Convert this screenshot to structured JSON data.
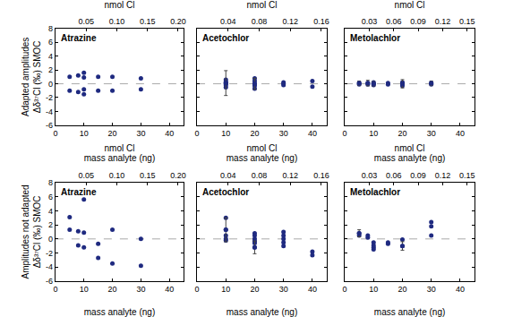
{
  "chart_data": [
    {
      "type": "scatter",
      "title": "Atrazine",
      "xlabel": "mass analyte (ng)",
      "x2label": "nmol Cl",
      "ylabel": [
        "Adapted amplitudes",
        "Δδ³⁷Cl (‰) SMOC"
      ],
      "xlim": [
        0,
        45
      ],
      "xticks": [
        0,
        10,
        20,
        30,
        40
      ],
      "x2lim": [
        0,
        0.209
      ],
      "x2ticks": [
        0.05,
        {
          "value": 0.1,
          "label": "0.10"
        },
        0.15,
        {
          "value": 0.2,
          "label": "0.20"
        }
      ],
      "ylim": [
        -6,
        8
      ],
      "yticks": [
        -6,
        -4,
        -2,
        0,
        2,
        4,
        6,
        8
      ],
      "grid": false,
      "color": "#1f2a80",
      "marker": "circle",
      "reference_line": 0,
      "x": [
        5,
        5,
        8,
        8,
        10,
        10,
        10,
        10,
        15,
        15,
        20,
        20,
        30,
        30
      ],
      "y": [
        1,
        -1,
        1.2,
        -1.2,
        1.6,
        0.9,
        -0.8,
        -1.5,
        1,
        -1,
        1,
        -1,
        0.8,
        -0.8
      ],
      "errors": [
        null,
        null,
        null,
        null,
        null,
        null,
        null,
        null,
        null,
        null,
        null,
        null,
        null,
        null
      ]
    },
    {
      "type": "scatter",
      "title": "Acetochlor",
      "xlabel": "mass analyte (ng)",
      "x2label": "nmol Cl",
      "tick_labels": "x",
      "xlim": [
        0,
        45
      ],
      "xticks": [
        0,
        10,
        20,
        30,
        40
      ],
      "x2lim": [
        0,
        0.167
      ],
      "x2ticks": [
        0.04,
        0.08,
        0.12,
        0.16
      ],
      "ylim": [
        -6,
        8
      ],
      "yticks": [
        -6,
        -4,
        -2,
        0,
        2,
        4,
        6,
        8
      ],
      "grid": false,
      "color": "#1f2a80",
      "marker": "circle",
      "reference_line": 0,
      "x": [
        10,
        10,
        10,
        10,
        10,
        10,
        20,
        20,
        20,
        20,
        20,
        30,
        30,
        30,
        40,
        40
      ],
      "y": [
        0.6,
        0.3,
        0.1,
        0,
        -0.2,
        -0.5,
        0.8,
        0.4,
        0,
        -0.3,
        -0.7,
        0.2,
        0,
        -0.2,
        0.4,
        -0.4
      ],
      "errors": [
        null,
        null,
        1.8,
        null,
        null,
        null,
        null,
        null,
        0.8,
        null,
        null,
        null,
        null,
        null,
        null,
        null
      ]
    },
    {
      "type": "scatter",
      "title": "Metolachlor",
      "xlabel": "mass analyte (ng)",
      "x2label": "nmol Cl",
      "tick_labels": "x",
      "xlim": [
        0,
        45
      ],
      "xticks": [
        0,
        10,
        20,
        30,
        40
      ],
      "x2lim": [
        0,
        0.159
      ],
      "x2ticks": [
        0.03,
        0.06,
        0.09,
        0.12,
        0.15
      ],
      "ylim": [
        -6,
        8
      ],
      "yticks": [
        -6,
        -4,
        -2,
        0,
        2,
        4,
        6,
        8
      ],
      "grid": false,
      "color": "#1f2a80",
      "marker": "circle",
      "reference_line": 0,
      "x": [
        5,
        5,
        8,
        8,
        10,
        10,
        10,
        15,
        15,
        20,
        20,
        20,
        30,
        30
      ],
      "y": [
        0.1,
        -0.1,
        0.1,
        -0.1,
        0.2,
        0,
        -0.2,
        0.1,
        -0.1,
        0.2,
        0,
        -0.3,
        0.1,
        -0.1
      ],
      "errors": [
        0.3,
        null,
        0.4,
        null,
        null,
        0.3,
        null,
        null,
        null,
        null,
        0.6,
        null,
        0.3,
        null
      ]
    },
    {
      "type": "scatter",
      "title": "Atrazine",
      "xlabel": "mass analyte (ng)",
      "x2label": "nmol Cl",
      "ylabel": [
        "Amplitudes not adapted",
        "Δδ³⁷Cl (‰) SMOC"
      ],
      "xlim": [
        0,
        45
      ],
      "xticks": [
        0,
        10,
        20,
        30,
        40
      ],
      "x2lim": [
        0,
        0.209
      ],
      "x2ticks": [
        0.05,
        {
          "value": 0.1,
          "label": "0.10"
        },
        0.15,
        {
          "value": 0.2,
          "label": "0.20"
        }
      ],
      "ylim": [
        -6,
        8
      ],
      "yticks": [
        -6,
        -4,
        -2,
        0,
        2,
        4,
        6,
        8
      ],
      "grid": false,
      "color": "#1f2a80",
      "marker": "circle",
      "reference_line": 0,
      "x": [
        5,
        5,
        8,
        8,
        10,
        10,
        10,
        15,
        15,
        20,
        20,
        30,
        30
      ],
      "y": [
        3.1,
        1.3,
        1.1,
        -0.9,
        5.6,
        0.9,
        -1.2,
        -0.7,
        -2.7,
        1.3,
        -3.5,
        0,
        -3.8
      ],
      "errors": [
        null,
        null,
        null,
        null,
        null,
        null,
        null,
        null,
        null,
        null,
        null,
        null,
        null
      ]
    },
    {
      "type": "scatter",
      "title": "Acetochlor",
      "xlabel": "mass analyte (ng)",
      "x2label": "nmol Cl",
      "tick_labels": "x",
      "xlim": [
        0,
        45
      ],
      "xticks": [
        0,
        10,
        20,
        30,
        40
      ],
      "x2lim": [
        0,
        0.167
      ],
      "x2ticks": [
        0.04,
        0.08,
        0.12,
        0.16
      ],
      "ylim": [
        -6,
        8
      ],
      "yticks": [
        -6,
        -4,
        -2,
        0,
        2,
        4,
        6,
        8
      ],
      "grid": false,
      "color": "#1f2a80",
      "marker": "circle",
      "reference_line": 0,
      "x": [
        10,
        10,
        10,
        10,
        10,
        20,
        20,
        20,
        20,
        20,
        20,
        30,
        30,
        30,
        30,
        30,
        40,
        40
      ],
      "y": [
        3.0,
        1.3,
        0.5,
        0,
        -0.2,
        0.8,
        0.5,
        0,
        -0.3,
        -0.6,
        -1.2,
        1.0,
        0.5,
        0,
        -0.5,
        -1.0,
        -1.8,
        -2.3
      ],
      "errors": [
        null,
        1.7,
        null,
        null,
        null,
        null,
        null,
        null,
        null,
        null,
        0.9,
        null,
        null,
        null,
        null,
        null,
        null,
        null
      ]
    },
    {
      "type": "scatter",
      "title": "Metolachlor",
      "xlabel": "mass analyte (ng)",
      "x2label": "nmol Cl",
      "tick_labels": "x",
      "xlim": [
        0,
        45
      ],
      "xticks": [
        0,
        10,
        20,
        30,
        40
      ],
      "x2lim": [
        0,
        0.159
      ],
      "x2ticks": [
        0.03,
        0.06,
        0.09,
        0.12,
        0.15
      ],
      "ylim": [
        -6,
        8
      ],
      "yticks": [
        -6,
        -4,
        -2,
        0,
        2,
        4,
        6,
        8
      ],
      "grid": false,
      "color": "#1f2a80",
      "marker": "circle",
      "reference_line": 0,
      "x": [
        5,
        5,
        8,
        8,
        10,
        10,
        10,
        10,
        15,
        15,
        20,
        20,
        30,
        30,
        30
      ],
      "y": [
        0.8,
        0.5,
        0.5,
        0.2,
        -0.5,
        -0.9,
        -1.2,
        -1.5,
        -0.5,
        -0.7,
        -0.1,
        -1.0,
        2.4,
        1.8,
        0.5
      ],
      "errors": [
        0.5,
        null,
        null,
        null,
        null,
        null,
        null,
        null,
        null,
        null,
        null,
        0.6,
        null,
        null,
        null
      ]
    }
  ]
}
